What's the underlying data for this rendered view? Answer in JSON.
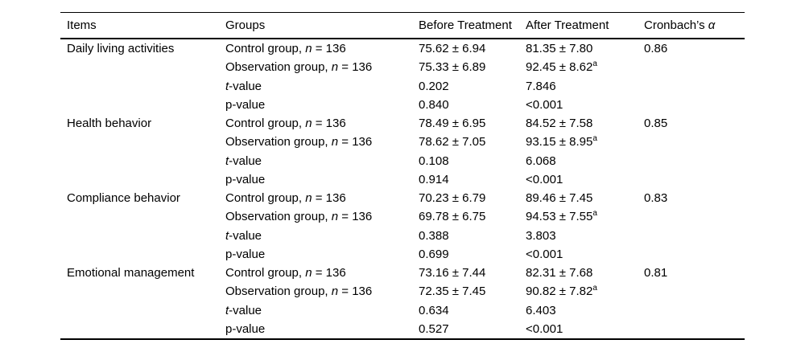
{
  "table": {
    "columns": {
      "items": "Items",
      "groups": "Groups",
      "before": "Before Treatment",
      "after": "After Treatment",
      "cronbach_pre": "Cronbach’s ",
      "cronbach_symbol": "α"
    },
    "sections": [
      {
        "item": "Daily living activities",
        "alpha": "0.86",
        "rows": [
          {
            "group_pre": "Control group, ",
            "group_it": "n",
            "group_post": " = 136",
            "before": "75.62 ± 6.94",
            "after": "81.35 ± 7.80",
            "after_sup": ""
          },
          {
            "group_pre": "Observation group, ",
            "group_it": "n",
            "group_post": " = 136",
            "before": "75.33 ± 6.89",
            "after": "92.45 ± 8.62",
            "after_sup": "a"
          },
          {
            "group_pre": "",
            "group_it": "t",
            "group_post": "-value",
            "before": "0.202",
            "after": "7.846",
            "after_sup": ""
          },
          {
            "group_pre": "p-value",
            "group_it": "",
            "group_post": "",
            "before": "0.840",
            "after": "<0.001",
            "after_sup": ""
          }
        ]
      },
      {
        "item": "Health behavior",
        "alpha": "0.85",
        "rows": [
          {
            "group_pre": "Control group, ",
            "group_it": "n",
            "group_post": " = 136",
            "before": "78.49 ± 6.95",
            "after": "84.52 ± 7.58",
            "after_sup": ""
          },
          {
            "group_pre": "Observation group, ",
            "group_it": "n",
            "group_post": " = 136",
            "before": "78.62 ± 7.05",
            "after": "93.15 ± 8.95",
            "after_sup": "a"
          },
          {
            "group_pre": "",
            "group_it": "t",
            "group_post": "-value",
            "before": "0.108",
            "after": "6.068",
            "after_sup": ""
          },
          {
            "group_pre": "p-value",
            "group_it": "",
            "group_post": "",
            "before": "0.914",
            "after": "<0.001",
            "after_sup": ""
          }
        ]
      },
      {
        "item": "Compliance behavior",
        "alpha": "0.83",
        "rows": [
          {
            "group_pre": "Control group, ",
            "group_it": "n",
            "group_post": " = 136",
            "before": "70.23 ± 6.79",
            "after": "89.46 ± 7.45",
            "after_sup": ""
          },
          {
            "group_pre": "Observation group, ",
            "group_it": "n",
            "group_post": " = 136",
            "before": "69.78 ± 6.75",
            "after": "94.53 ± 7.55",
            "after_sup": "a"
          },
          {
            "group_pre": "",
            "group_it": "t",
            "group_post": "-value",
            "before": "0.388",
            "after": "3.803",
            "after_sup": ""
          },
          {
            "group_pre": "p-value",
            "group_it": "",
            "group_post": "",
            "before": "0.699",
            "after": "<0.001",
            "after_sup": ""
          }
        ]
      },
      {
        "item": "Emotional management",
        "alpha": "0.81",
        "rows": [
          {
            "group_pre": "Control group, ",
            "group_it": "n",
            "group_post": " = 136",
            "before": "73.16 ± 7.44",
            "after": "82.31 ± 7.68",
            "after_sup": ""
          },
          {
            "group_pre": "Observation group, ",
            "group_it": "n",
            "group_post": " = 136",
            "before": "72.35 ± 7.45",
            "after": "90.82 ± 7.82",
            "after_sup": "a"
          },
          {
            "group_pre": "",
            "group_it": "t",
            "group_post": "-value",
            "before": "0.634",
            "after": "6.403",
            "after_sup": ""
          },
          {
            "group_pre": "p-value",
            "group_it": "",
            "group_post": "",
            "before": "0.527",
            "after": "<0.001",
            "after_sup": ""
          }
        ]
      }
    ]
  }
}
